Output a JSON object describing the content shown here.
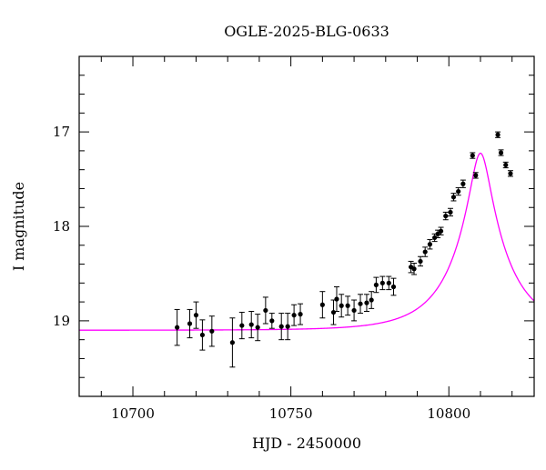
{
  "chart_data": {
    "type": "scatter",
    "title": "OGLE-2025-BLG-0633",
    "xlabel": "HJD - 2450000",
    "ylabel": "I magnitude",
    "xlim": [
      10683,
      10827
    ],
    "ylim": [
      19.8,
      16.2
    ],
    "y_inverted": true,
    "grid": false,
    "x_ticks": [
      10700,
      10750,
      10800
    ],
    "y_ticks": [
      17,
      18,
      19
    ],
    "x_minor_step": 10,
    "y_minor_step": 0.2,
    "colors": {
      "points": "#000000",
      "errorbars": "#000000",
      "model": "#ff00ff"
    },
    "series": [
      {
        "kind": "points_with_errors",
        "x": [
          10714.0,
          10718.0,
          10720.0,
          10722.0,
          10725.0,
          10731.5,
          10734.5,
          10737.5,
          10739.5,
          10742.0,
          10744.0,
          10747.0,
          10749.0,
          10751.0,
          10753.0,
          10760.0,
          10763.5,
          10764.5,
          10766.0,
          10768.0,
          10770.0,
          10772.0,
          10774.0,
          10775.5,
          10777.0,
          10779.0,
          10781.0,
          10782.5,
          10788.0,
          10789.0,
          10791.0,
          10792.5,
          10794.0,
          10795.5,
          10796.5,
          10797.5,
          10799.0,
          10800.5,
          10801.5,
          10803.0,
          10804.5,
          10807.5,
          10808.5,
          10815.5,
          10816.5,
          10818.0,
          10819.5
        ],
        "y": [
          19.07,
          19.03,
          18.94,
          19.15,
          19.11,
          19.23,
          19.05,
          19.04,
          19.07,
          18.89,
          19.0,
          19.06,
          19.06,
          18.94,
          18.93,
          18.83,
          18.91,
          18.77,
          18.84,
          18.84,
          18.89,
          18.82,
          18.81,
          18.78,
          18.62,
          18.6,
          18.6,
          18.64,
          18.43,
          18.45,
          18.37,
          18.27,
          18.19,
          18.12,
          18.08,
          18.05,
          17.89,
          17.85,
          17.69,
          17.63,
          17.55,
          17.25,
          17.46,
          17.03,
          17.22,
          17.35,
          17.44
        ],
        "yerr": [
          0.19,
          0.15,
          0.14,
          0.16,
          0.16,
          0.26,
          0.14,
          0.14,
          0.14,
          0.14,
          0.08,
          0.14,
          0.14,
          0.11,
          0.11,
          0.14,
          0.13,
          0.13,
          0.12,
          0.1,
          0.11,
          0.1,
          0.09,
          0.09,
          0.08,
          0.07,
          0.07,
          0.09,
          0.06,
          0.06,
          0.05,
          0.05,
          0.05,
          0.04,
          0.04,
          0.04,
          0.04,
          0.04,
          0.04,
          0.04,
          0.04,
          0.03,
          0.03,
          0.03,
          0.03,
          0.03,
          0.03
        ]
      },
      {
        "kind": "model_line",
        "t0": 10810.0,
        "tE": 17.0,
        "u0": 0.18,
        "I_base": 19.1
      }
    ]
  }
}
